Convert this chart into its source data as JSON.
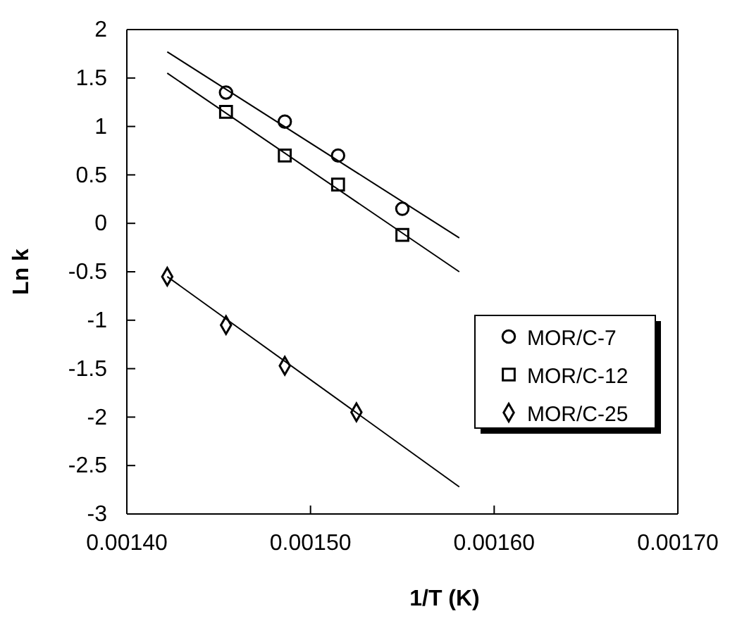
{
  "chart_data": {
    "type": "scatter",
    "xlabel": "1/T (K)",
    "ylabel": "Ln k",
    "xlim": [
      0.0014,
      0.0017
    ],
    "ylim": [
      -3,
      2
    ],
    "xticks": [
      {
        "value": 0.0014,
        "label": "0.00140"
      },
      {
        "value": 0.0015,
        "label": "0.00150"
      },
      {
        "value": 0.0016,
        "label": "0.00160"
      },
      {
        "value": 0.0017,
        "label": "0.00170"
      }
    ],
    "yticks": [
      -3,
      -2.5,
      -2,
      -1.5,
      -1,
      -0.5,
      0,
      0.5,
      1,
      1.5,
      2
    ],
    "legend": "right",
    "grid": false,
    "series": [
      {
        "name": "MOR/C-7",
        "marker": "circle",
        "color": "#000000",
        "x": [
          0.001454,
          0.001486,
          0.001515,
          0.00155
        ],
        "values": [
          1.35,
          1.05,
          0.7,
          0.15
        ]
      },
      {
        "name": "MOR/C-12",
        "marker": "square",
        "color": "#000000",
        "x": [
          0.001454,
          0.001486,
          0.001515,
          0.00155
        ],
        "values": [
          1.15,
          0.7,
          0.4,
          -0.12
        ]
      },
      {
        "name": "MOR/C-25",
        "marker": "diamond",
        "color": "#000000",
        "x": [
          0.001422,
          0.001454,
          0.001486,
          0.001525
        ],
        "values": [
          -0.55,
          -1.05,
          -1.47,
          -1.95
        ]
      },
      {
        "type": "line",
        "color": "#000000",
        "x": [
          0.001422,
          0.001581
        ],
        "values": [
          1.77,
          -0.15
        ]
      },
      {
        "type": "line",
        "color": "#000000",
        "x": [
          0.001422,
          0.001581
        ],
        "values": [
          1.55,
          -0.5
        ]
      },
      {
        "type": "line",
        "color": "#000000",
        "x": [
          0.001422,
          0.001581
        ],
        "values": [
          -0.55,
          -2.72
        ]
      }
    ]
  }
}
